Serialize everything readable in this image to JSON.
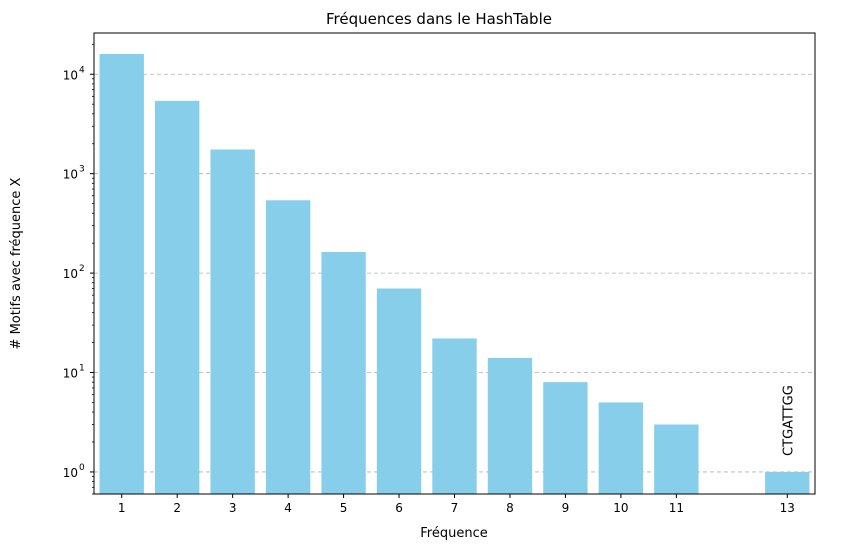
{
  "chart_data": {
    "type": "bar",
    "title": "Fréquences dans le HashTable",
    "xlabel": "Fréquence",
    "ylabel": "# Motifs avec fréquence X",
    "yscale": "log",
    "ylim": [
      0.6,
      26000
    ],
    "xlim": [
      -0.5,
      12.5
    ],
    "grid": "y-axis dashed",
    "bar_color": "#87CEEB",
    "x": [
      1,
      2,
      3,
      4,
      5,
      6,
      7,
      8,
      9,
      10,
      11,
      13
    ],
    "values": [
      16000,
      5400,
      1750,
      540,
      163,
      70,
      22,
      14,
      8,
      5,
      3,
      1
    ],
    "xticks": [
      "1",
      "2",
      "3",
      "4",
      "5",
      "6",
      "7",
      "8",
      "9",
      "10",
      "11",
      "13"
    ],
    "yticks": [
      {
        "value": 1,
        "base": "10",
        "exp": "0"
      },
      {
        "value": 10,
        "base": "10",
        "exp": "1"
      },
      {
        "value": 100,
        "base": "10",
        "exp": "2"
      },
      {
        "value": 1000,
        "base": "10",
        "exp": "3"
      },
      {
        "value": 10000,
        "base": "10",
        "exp": "4"
      }
    ],
    "annotations": [
      {
        "x": 13,
        "text": "CTGATTGG",
        "rotation": "vertical"
      }
    ]
  }
}
